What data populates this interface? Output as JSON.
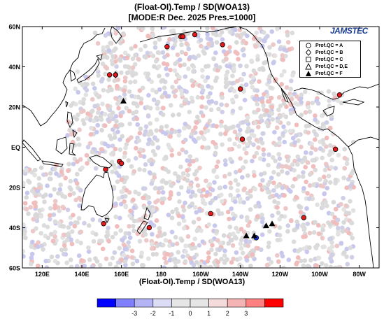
{
  "title_line1": "(Float-OI).Temp / SD(WOA13)",
  "title_line2": "[MODE:R Dec. 2025  Pres.=1000]",
  "x_axis_label": "(Float-OI).Temp / SD(WOA13)",
  "logo_text": "JAMSTEC",
  "lat_ticks": [
    "60N",
    "40N",
    "20N",
    "EQ",
    "20S",
    "40S",
    "60S"
  ],
  "lon_ticks": [
    "120E",
    "140E",
    "160E",
    "180",
    "160W",
    "140W",
    "120W",
    "100W",
    "80W"
  ],
  "legend": [
    {
      "label": "Prof.QC = A",
      "symbol": "circle-open"
    },
    {
      "label": "Prof.QC = B",
      "symbol": "diamond-open"
    },
    {
      "label": "Prof.QC = C",
      "symbol": "square-open"
    },
    {
      "label": "Prof.QC = D,E",
      "symbol": "triangle-open"
    },
    {
      "label": "Prof.QC = F",
      "symbol": "triangle-filled"
    }
  ],
  "colorbar": {
    "tick_labels": [
      "-3",
      "-2",
      "-1",
      "0",
      "1",
      "2",
      "3"
    ],
    "colors": [
      "#0000ff",
      "#8080ff",
      "#b4b4f5",
      "#dcdcf5",
      "#e6e6e6",
      "#e6e6e6",
      "#f5dcdc",
      "#f5b4b4",
      "#ff8080",
      "#ff0000"
    ]
  },
  "map_data": {
    "lon_range": [
      110,
      290
    ],
    "lat_range": [
      -60,
      60
    ],
    "red_circles": [
      [
        154,
        36
      ],
      [
        157,
        36
      ],
      [
        183,
        50
      ],
      [
        190,
        55
      ],
      [
        191,
        55
      ],
      [
        197,
        56
      ],
      [
        211,
        51
      ],
      [
        220,
        29
      ],
      [
        270,
        26
      ],
      [
        221,
        4
      ],
      [
        268,
        -1
      ],
      [
        159,
        -7
      ],
      [
        160,
        -8
      ],
      [
        152,
        -11
      ],
      [
        151,
        -38
      ],
      [
        174,
        -40
      ],
      [
        205,
        -33
      ],
      [
        252,
        -35
      ]
    ],
    "blue_circles": [
      [
        228,
        -45
      ]
    ],
    "red_diamonds": [
      [
        157,
        36
      ]
    ],
    "filled_triangles": [
      [
        161,
        23
      ],
      [
        223,
        -44
      ],
      [
        227,
        -44
      ],
      [
        233,
        -39
      ],
      [
        236,
        -38
      ]
    ]
  }
}
